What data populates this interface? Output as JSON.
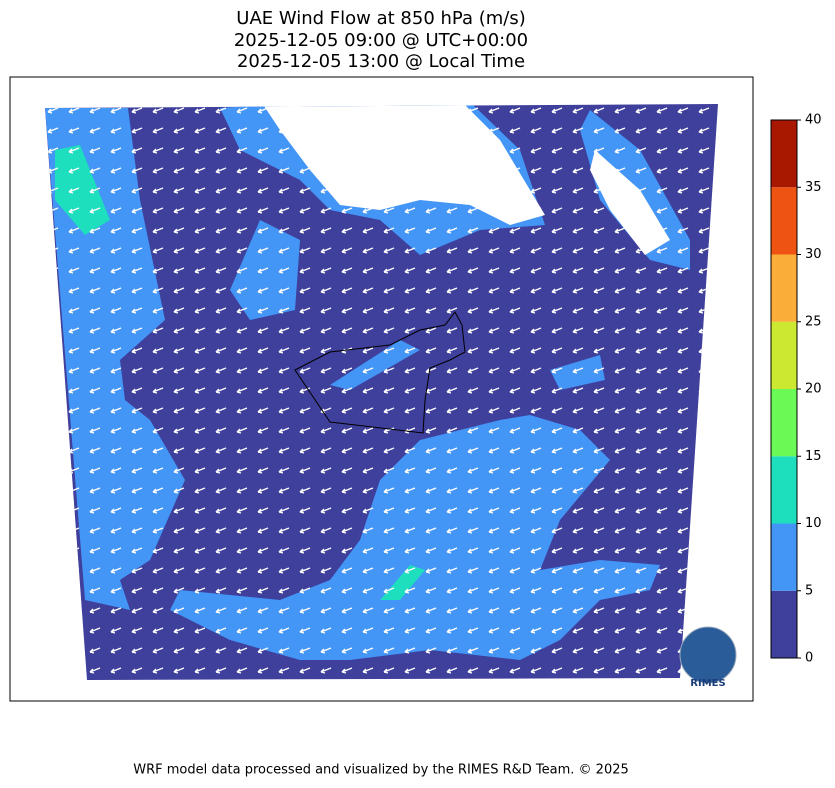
{
  "title": [
    "UAE Wind Flow at 850 hPa (m/s)",
    "2025-12-05 09:00 @ UTC+00:00",
    "2025-12-05 13:00 @ Local Time"
  ],
  "colorbar": {
    "ticks": [
      0,
      5,
      10,
      15,
      20,
      25,
      30,
      35,
      40
    ],
    "colors": [
      "#3f3f9c",
      "#4496f6",
      "#1ddebd",
      "#6afa55",
      "#cde830",
      "#fbad3a",
      "#ef5312",
      "#a81800"
    ]
  },
  "logo": "RIMES",
  "footer": "WRF model data processed and visualized by the RIMES R&D Team. © 2025"
}
